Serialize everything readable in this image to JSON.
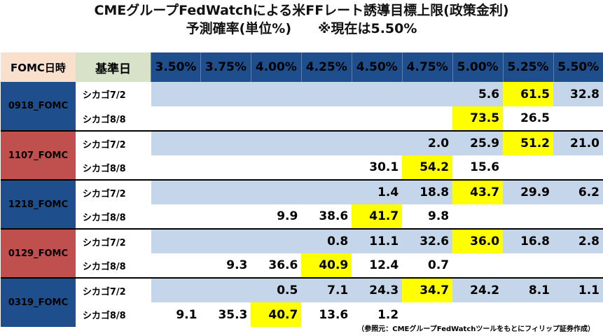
{
  "title": {
    "line1": "CMEグループFedWatchによる米FFレート誘導目標上限(政策金利)",
    "line2": "予測確率(単位%)　　※現在は5.50%"
  },
  "header": {
    "fomc": "FOMC日時",
    "base": "基準日",
    "rates": [
      "3.50%",
      "3.75%",
      "4.00%",
      "4.25%",
      "4.50%",
      "4.75%",
      "5.00%",
      "5.25%",
      "5.50%"
    ]
  },
  "meetings": [
    {
      "name": "0918_FOMC",
      "color": "#1f4e8c",
      "rows": [
        {
          "base": "シカゴ7/2",
          "values": [
            "",
            "",
            "",
            "",
            "",
            "",
            "5.6",
            "61.5",
            "32.8"
          ],
          "highlight": 7
        },
        {
          "base": "シカゴ8/8",
          "values": [
            "",
            "",
            "",
            "",
            "",
            "",
            "73.5",
            "26.5",
            ""
          ],
          "highlight": 6
        }
      ]
    },
    {
      "name": "1107_FOMC",
      "color": "#c0504d",
      "rows": [
        {
          "base": "シカゴ7/2",
          "values": [
            "",
            "",
            "",
            "",
            "",
            "2.0",
            "25.9",
            "51.2",
            "21.0"
          ],
          "highlight": 7
        },
        {
          "base": "シカゴ8/8",
          "values": [
            "",
            "",
            "",
            "",
            "30.1",
            "54.2",
            "15.6",
            "",
            ""
          ],
          "highlight": 5
        }
      ]
    },
    {
      "name": "1218_FOMC",
      "color": "#1f4e8c",
      "rows": [
        {
          "base": "シカゴ7/2",
          "values": [
            "",
            "",
            "",
            "",
            "1.4",
            "18.8",
            "43.7",
            "29.9",
            "6.2"
          ],
          "highlight": 6
        },
        {
          "base": "シカゴ8/8",
          "values": [
            "",
            "",
            "9.9",
            "38.6",
            "41.7",
            "9.8",
            "",
            "",
            ""
          ],
          "highlight": 4
        }
      ]
    },
    {
      "name": "0129_FOMC",
      "color": "#c0504d",
      "rows": [
        {
          "base": "シカゴ7/2",
          "values": [
            "",
            "",
            "",
            "0.8",
            "11.1",
            "32.6",
            "36.0",
            "16.8",
            "2.8"
          ],
          "highlight": 6
        },
        {
          "base": "シカゴ8/8",
          "values": [
            "",
            "9.3",
            "36.6",
            "40.9",
            "12.4",
            "0.7",
            "",
            "",
            ""
          ],
          "highlight": 3
        }
      ]
    },
    {
      "name": "0319_FOMC",
      "color": "#1f4e8c",
      "rows": [
        {
          "base": "シカゴ7/2",
          "values": [
            "",
            "",
            "0.5",
            "7.1",
            "24.3",
            "34.7",
            "24.2",
            "8.1",
            "1.1"
          ],
          "highlight": 5
        },
        {
          "base": "シカゴ8/8",
          "values": [
            "9.1",
            "35.3",
            "40.7",
            "13.6",
            "1.2",
            "",
            "",
            "",
            ""
          ],
          "highlight": 2
        }
      ]
    }
  ],
  "source": "（参照元：CMEグループFedWatchツールをもとにフィリップ証券作成）"
}
